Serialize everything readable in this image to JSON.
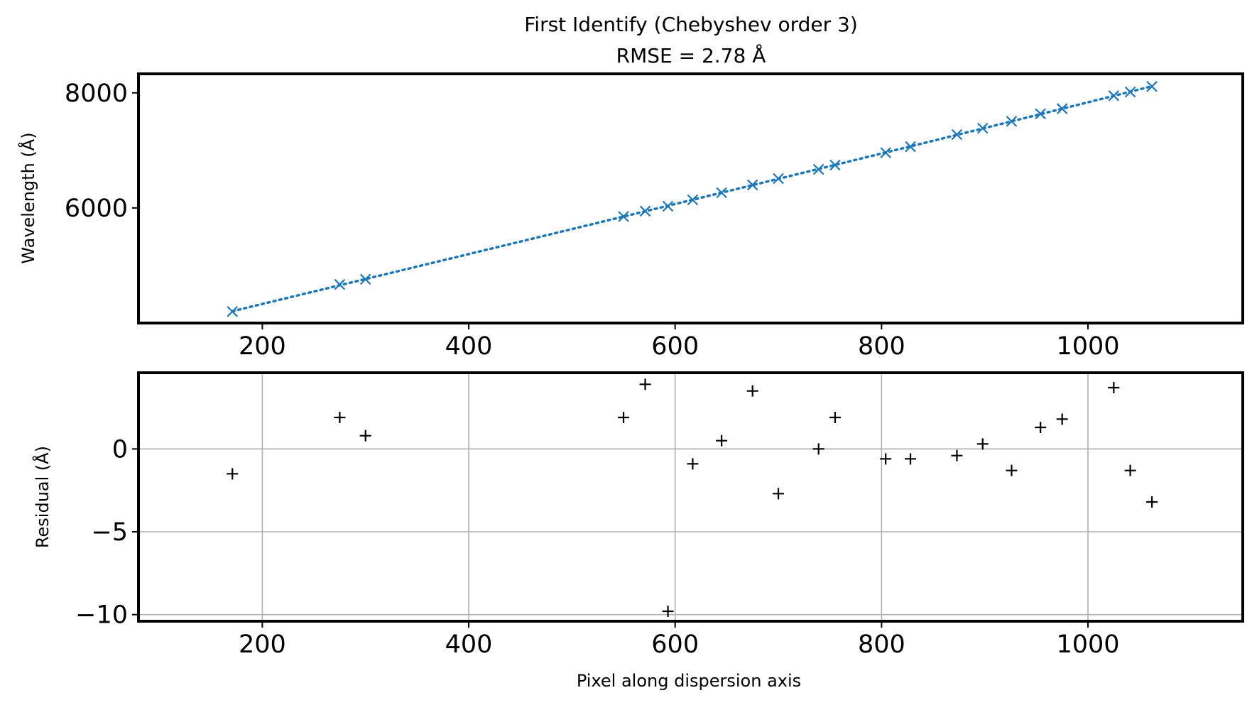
{
  "chart_data": [
    {
      "type": "line",
      "title": "First Identify (Chebyshev order 3)",
      "subtitle": "RMSE = 2.78 Å",
      "xlabel": "",
      "ylabel": "Wavelength (Å)",
      "xlim": [
        80,
        1150
      ],
      "ylim": [
        4000,
        8330
      ],
      "xticks": [
        200,
        400,
        600,
        800,
        1000
      ],
      "yticks": [
        6000,
        8000
      ],
      "xtick_labels": [
        "200",
        "400",
        "600",
        "800",
        "1000"
      ],
      "ytick_labels": [
        "6000",
        "8000"
      ],
      "grid": false,
      "colors": {
        "series": "#1f77b4"
      },
      "fit_line": {
        "style": "dotted",
        "x": [
          171,
          1062
        ],
        "note_visible": false
      },
      "series": [
        {
          "marker": "x",
          "x": [
            171,
            275,
            300,
            550,
            571,
            593,
            617,
            645,
            675,
            700,
            739,
            755,
            804,
            828,
            873,
            898,
            926,
            954,
            975,
            1025,
            1041,
            1062
          ],
          "y": [
            4200,
            4670,
            4760,
            5850,
            5945,
            6030,
            6140,
            6265,
            6400,
            6510,
            6670,
            6745,
            6960,
            7065,
            7275,
            7385,
            7505,
            7635,
            7725,
            7950,
            8015,
            8110
          ]
        }
      ]
    },
    {
      "type": "scatter",
      "xlabel": "Pixel along dispersion axis",
      "ylabel": "Residual (Å)",
      "xlim": [
        80,
        1150
      ],
      "ylim": [
        -10.4,
        4.6
      ],
      "xticks": [
        200,
        400,
        600,
        800,
        1000
      ],
      "yticks": [
        -10,
        -5,
        0
      ],
      "xtick_labels": [
        "200",
        "400",
        "600",
        "800",
        "1000"
      ],
      "ytick_labels": [
        "−10",
        "−5",
        "0"
      ],
      "grid": true,
      "colors": {
        "marker": "#000000"
      },
      "series": [
        {
          "marker": "+",
          "x": [
            171,
            275,
            300,
            550,
            571,
            593,
            617,
            645,
            675,
            700,
            739,
            755,
            804,
            828,
            873,
            898,
            926,
            954,
            975,
            1025,
            1041,
            1062
          ],
          "y": [
            -1.5,
            1.9,
            0.8,
            1.9,
            3.9,
            -9.8,
            -0.9,
            0.5,
            3.5,
            -2.7,
            0.0,
            1.9,
            -0.6,
            -0.6,
            -0.4,
            0.3,
            -1.3,
            1.3,
            1.8,
            3.7,
            -1.3,
            -3.2
          ]
        }
      ]
    }
  ]
}
